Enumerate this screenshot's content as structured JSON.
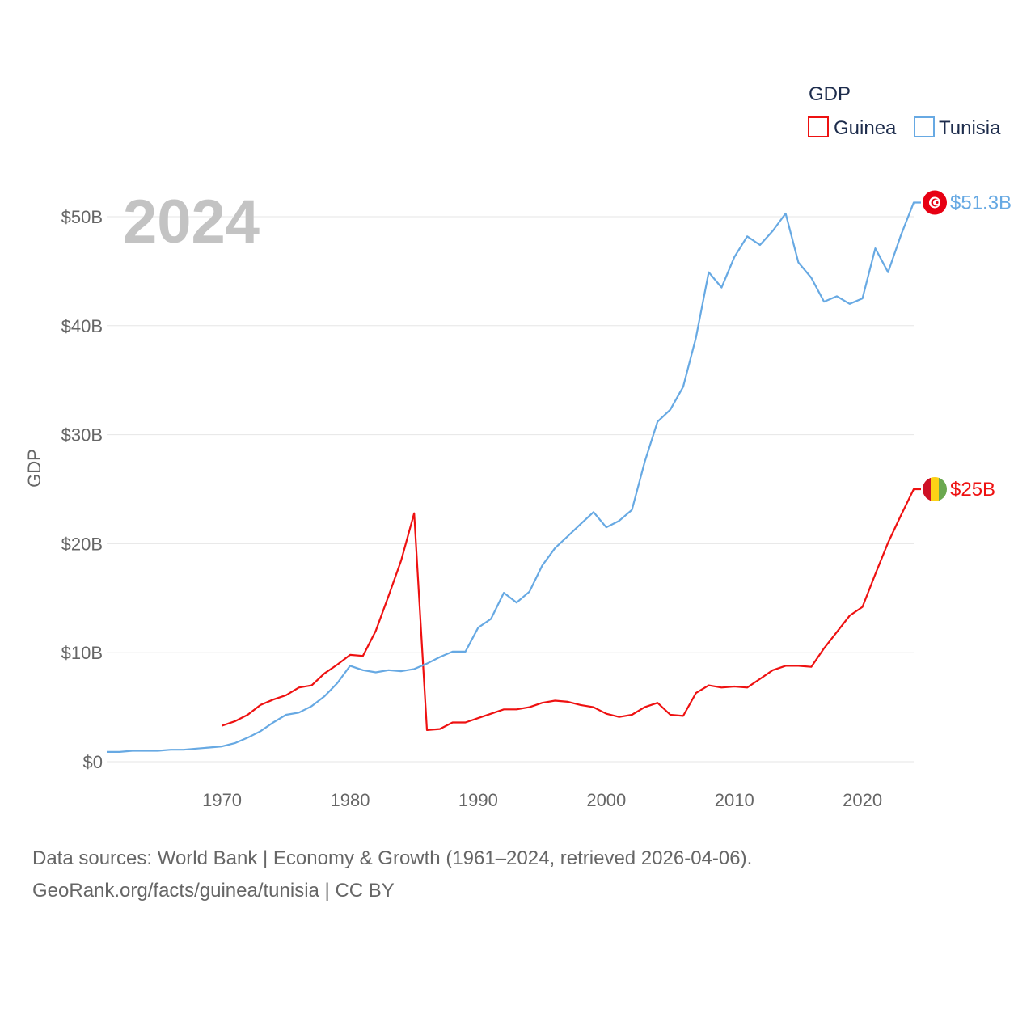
{
  "chart_data": {
    "type": "line",
    "title": "",
    "legend_title": "GDP",
    "legend_position": "top-right",
    "year_label": "2024",
    "xlabel": "",
    "ylabel": "GDP",
    "xlim": [
      1961,
      2024
    ],
    "ylim": [
      0,
      52
    ],
    "x_ticks": [
      1970,
      1980,
      1990,
      2000,
      2010,
      2020
    ],
    "y_ticks": [
      {
        "value": 0,
        "label": "$0"
      },
      {
        "value": 10,
        "label": "$10B"
      },
      {
        "value": 20,
        "label": "$20B"
      },
      {
        "value": 30,
        "label": "$30B"
      },
      {
        "value": 40,
        "label": "$40B"
      },
      {
        "value": 50,
        "label": "$50B"
      }
    ],
    "unit": "billions USD",
    "series": [
      {
        "name": "Guinea",
        "color": "#ee1111",
        "end_label": "$25B",
        "flag_icon": "guinea-flag-icon",
        "x": [
          1970,
          1971,
          1972,
          1973,
          1974,
          1975,
          1976,
          1977,
          1978,
          1979,
          1980,
          1981,
          1982,
          1983,
          1984,
          1985,
          1986,
          1987,
          1988,
          1989,
          1990,
          1991,
          1992,
          1993,
          1994,
          1995,
          1996,
          1997,
          1998,
          1999,
          2000,
          2001,
          2002,
          2003,
          2004,
          2005,
          2006,
          2007,
          2008,
          2009,
          2010,
          2011,
          2012,
          2013,
          2014,
          2015,
          2016,
          2017,
          2018,
          2019,
          2020,
          2021,
          2022,
          2023,
          2024
        ],
        "values": [
          3.3,
          3.7,
          4.3,
          5.2,
          5.7,
          6.1,
          6.8,
          7.0,
          8.1,
          8.9,
          9.8,
          9.7,
          12.0,
          15.2,
          18.5,
          22.8,
          2.9,
          3.0,
          3.6,
          3.6,
          4.0,
          4.4,
          4.8,
          4.8,
          5.0,
          5.4,
          5.6,
          5.5,
          5.2,
          5.0,
          4.4,
          4.1,
          4.3,
          5.0,
          5.4,
          4.3,
          4.2,
          6.3,
          7.0,
          6.8,
          6.9,
          6.8,
          7.6,
          8.4,
          8.8,
          8.8,
          8.7,
          10.4,
          11.9,
          13.4,
          14.2,
          17.2,
          20.1,
          22.6,
          25.0
        ]
      },
      {
        "name": "Tunisia",
        "color": "#67a9e3",
        "end_label": "$51.3B",
        "flag_icon": "tunisia-flag-icon",
        "x": [
          1961,
          1962,
          1963,
          1964,
          1965,
          1966,
          1967,
          1968,
          1969,
          1970,
          1971,
          1972,
          1973,
          1974,
          1975,
          1976,
          1977,
          1978,
          1979,
          1980,
          1981,
          1982,
          1983,
          1984,
          1985,
          1986,
          1987,
          1988,
          1989,
          1990,
          1991,
          1992,
          1993,
          1994,
          1995,
          1996,
          1997,
          1998,
          1999,
          2000,
          2001,
          2002,
          2003,
          2004,
          2005,
          2006,
          2007,
          2008,
          2009,
          2010,
          2011,
          2012,
          2013,
          2014,
          2015,
          2016,
          2017,
          2018,
          2019,
          2020,
          2021,
          2022,
          2023,
          2024
        ],
        "values": [
          0.9,
          0.9,
          1.0,
          1.0,
          1.0,
          1.1,
          1.1,
          1.2,
          1.3,
          1.4,
          1.7,
          2.2,
          2.8,
          3.6,
          4.3,
          4.5,
          5.1,
          6.0,
          7.2,
          8.8,
          8.4,
          8.2,
          8.4,
          8.3,
          8.5,
          9.0,
          9.6,
          10.1,
          10.1,
          12.3,
          13.1,
          15.5,
          14.6,
          15.6,
          18.0,
          19.6,
          20.7,
          21.8,
          22.9,
          21.5,
          22.1,
          23.1,
          27.5,
          31.2,
          32.3,
          34.4,
          38.9,
          44.9,
          43.5,
          46.3,
          48.2,
          47.4,
          48.7,
          50.3,
          45.8,
          44.4,
          42.2,
          42.7,
          42.0,
          42.5,
          47.1,
          44.9,
          48.3,
          51.3
        ]
      }
    ]
  },
  "footer": {
    "line1": "Data sources: World Bank | Economy & Growth (1961–2024, retrieved 2026-04-06).",
    "line2": "GeoRank.org/facts/guinea/tunisia | CC BY"
  }
}
